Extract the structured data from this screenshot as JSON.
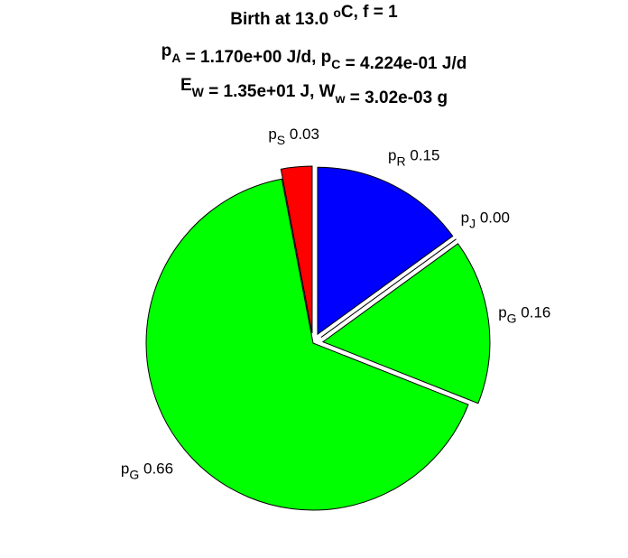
{
  "chart_data": {
    "type": "pie",
    "title": [
      [
        {
          "text": "Birth at 13.0 "
        },
        {
          "sup": "o"
        },
        {
          "text": "C, f = 1"
        }
      ],
      [
        {
          "text": "p"
        },
        {
          "sub": "A"
        },
        {
          "text": " = 1.170e+00 J/d, p"
        },
        {
          "sub": "C"
        },
        {
          "text": " = 4.224e-01 J/d"
        }
      ],
      [
        {
          "text": "E"
        },
        {
          "sub": "W"
        },
        {
          "text": " = 1.35e+01 J, W"
        },
        {
          "sub": "w"
        },
        {
          "text": " = 3.02e-03 g"
        }
      ]
    ],
    "categories": [
      {
        "text": "p",
        "sub": "R"
      },
      {
        "text": "p",
        "sub": "J"
      },
      {
        "text": "p",
        "sub": "G"
      },
      {
        "text": "p",
        "sub": "G"
      },
      {
        "text": "p",
        "sub": "S"
      }
    ],
    "values": [
      0.15,
      0,
      0.16,
      0.66,
      0.03
    ],
    "value_labels": [
      "0.15",
      "0.00",
      "0.16",
      "0.66",
      "0.03"
    ],
    "colors": [
      "#0000ff",
      "#a000a0",
      "#00ff00",
      "#00ff00",
      "#ff0000"
    ],
    "explode": [
      true,
      true,
      true,
      false,
      true
    ]
  }
}
